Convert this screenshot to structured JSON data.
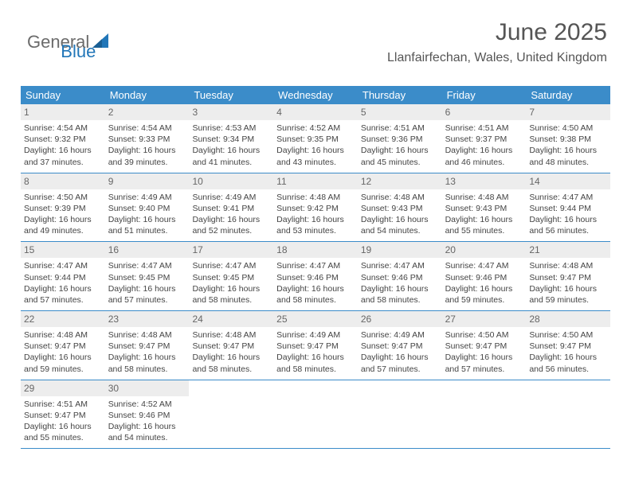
{
  "logo": {
    "part1": "General",
    "part2": "Blue"
  },
  "title": "June 2025",
  "location": "Llanfairfechan, Wales, United Kingdom",
  "colors": {
    "header_bg": "#3b8cc9",
    "header_text": "#ffffff",
    "daynum_bg": "#ededed",
    "logo_blue": "#2176b8",
    "logo_gray": "#6b6b6b"
  },
  "dayNames": [
    "Sunday",
    "Monday",
    "Tuesday",
    "Wednesday",
    "Thursday",
    "Friday",
    "Saturday"
  ],
  "weeks": [
    [
      {
        "n": "1",
        "sr": "4:54 AM",
        "ss": "9:32 PM",
        "dl": "16 hours and 37 minutes."
      },
      {
        "n": "2",
        "sr": "4:54 AM",
        "ss": "9:33 PM",
        "dl": "16 hours and 39 minutes."
      },
      {
        "n": "3",
        "sr": "4:53 AM",
        "ss": "9:34 PM",
        "dl": "16 hours and 41 minutes."
      },
      {
        "n": "4",
        "sr": "4:52 AM",
        "ss": "9:35 PM",
        "dl": "16 hours and 43 minutes."
      },
      {
        "n": "5",
        "sr": "4:51 AM",
        "ss": "9:36 PM",
        "dl": "16 hours and 45 minutes."
      },
      {
        "n": "6",
        "sr": "4:51 AM",
        "ss": "9:37 PM",
        "dl": "16 hours and 46 minutes."
      },
      {
        "n": "7",
        "sr": "4:50 AM",
        "ss": "9:38 PM",
        "dl": "16 hours and 48 minutes."
      }
    ],
    [
      {
        "n": "8",
        "sr": "4:50 AM",
        "ss": "9:39 PM",
        "dl": "16 hours and 49 minutes."
      },
      {
        "n": "9",
        "sr": "4:49 AM",
        "ss": "9:40 PM",
        "dl": "16 hours and 51 minutes."
      },
      {
        "n": "10",
        "sr": "4:49 AM",
        "ss": "9:41 PM",
        "dl": "16 hours and 52 minutes."
      },
      {
        "n": "11",
        "sr": "4:48 AM",
        "ss": "9:42 PM",
        "dl": "16 hours and 53 minutes."
      },
      {
        "n": "12",
        "sr": "4:48 AM",
        "ss": "9:43 PM",
        "dl": "16 hours and 54 minutes."
      },
      {
        "n": "13",
        "sr": "4:48 AM",
        "ss": "9:43 PM",
        "dl": "16 hours and 55 minutes."
      },
      {
        "n": "14",
        "sr": "4:47 AM",
        "ss": "9:44 PM",
        "dl": "16 hours and 56 minutes."
      }
    ],
    [
      {
        "n": "15",
        "sr": "4:47 AM",
        "ss": "9:44 PM",
        "dl": "16 hours and 57 minutes."
      },
      {
        "n": "16",
        "sr": "4:47 AM",
        "ss": "9:45 PM",
        "dl": "16 hours and 57 minutes."
      },
      {
        "n": "17",
        "sr": "4:47 AM",
        "ss": "9:45 PM",
        "dl": "16 hours and 58 minutes."
      },
      {
        "n": "18",
        "sr": "4:47 AM",
        "ss": "9:46 PM",
        "dl": "16 hours and 58 minutes."
      },
      {
        "n": "19",
        "sr": "4:47 AM",
        "ss": "9:46 PM",
        "dl": "16 hours and 58 minutes."
      },
      {
        "n": "20",
        "sr": "4:47 AM",
        "ss": "9:46 PM",
        "dl": "16 hours and 59 minutes."
      },
      {
        "n": "21",
        "sr": "4:48 AM",
        "ss": "9:47 PM",
        "dl": "16 hours and 59 minutes."
      }
    ],
    [
      {
        "n": "22",
        "sr": "4:48 AM",
        "ss": "9:47 PM",
        "dl": "16 hours and 59 minutes."
      },
      {
        "n": "23",
        "sr": "4:48 AM",
        "ss": "9:47 PM",
        "dl": "16 hours and 58 minutes."
      },
      {
        "n": "24",
        "sr": "4:48 AM",
        "ss": "9:47 PM",
        "dl": "16 hours and 58 minutes."
      },
      {
        "n": "25",
        "sr": "4:49 AM",
        "ss": "9:47 PM",
        "dl": "16 hours and 58 minutes."
      },
      {
        "n": "26",
        "sr": "4:49 AM",
        "ss": "9:47 PM",
        "dl": "16 hours and 57 minutes."
      },
      {
        "n": "27",
        "sr": "4:50 AM",
        "ss": "9:47 PM",
        "dl": "16 hours and 57 minutes."
      },
      {
        "n": "28",
        "sr": "4:50 AM",
        "ss": "9:47 PM",
        "dl": "16 hours and 56 minutes."
      }
    ],
    [
      {
        "n": "29",
        "sr": "4:51 AM",
        "ss": "9:47 PM",
        "dl": "16 hours and 55 minutes."
      },
      {
        "n": "30",
        "sr": "4:52 AM",
        "ss": "9:46 PM",
        "dl": "16 hours and 54 minutes."
      },
      null,
      null,
      null,
      null,
      null
    ]
  ],
  "labels": {
    "sunrise": "Sunrise:",
    "sunset": "Sunset:",
    "daylight": "Daylight:"
  }
}
